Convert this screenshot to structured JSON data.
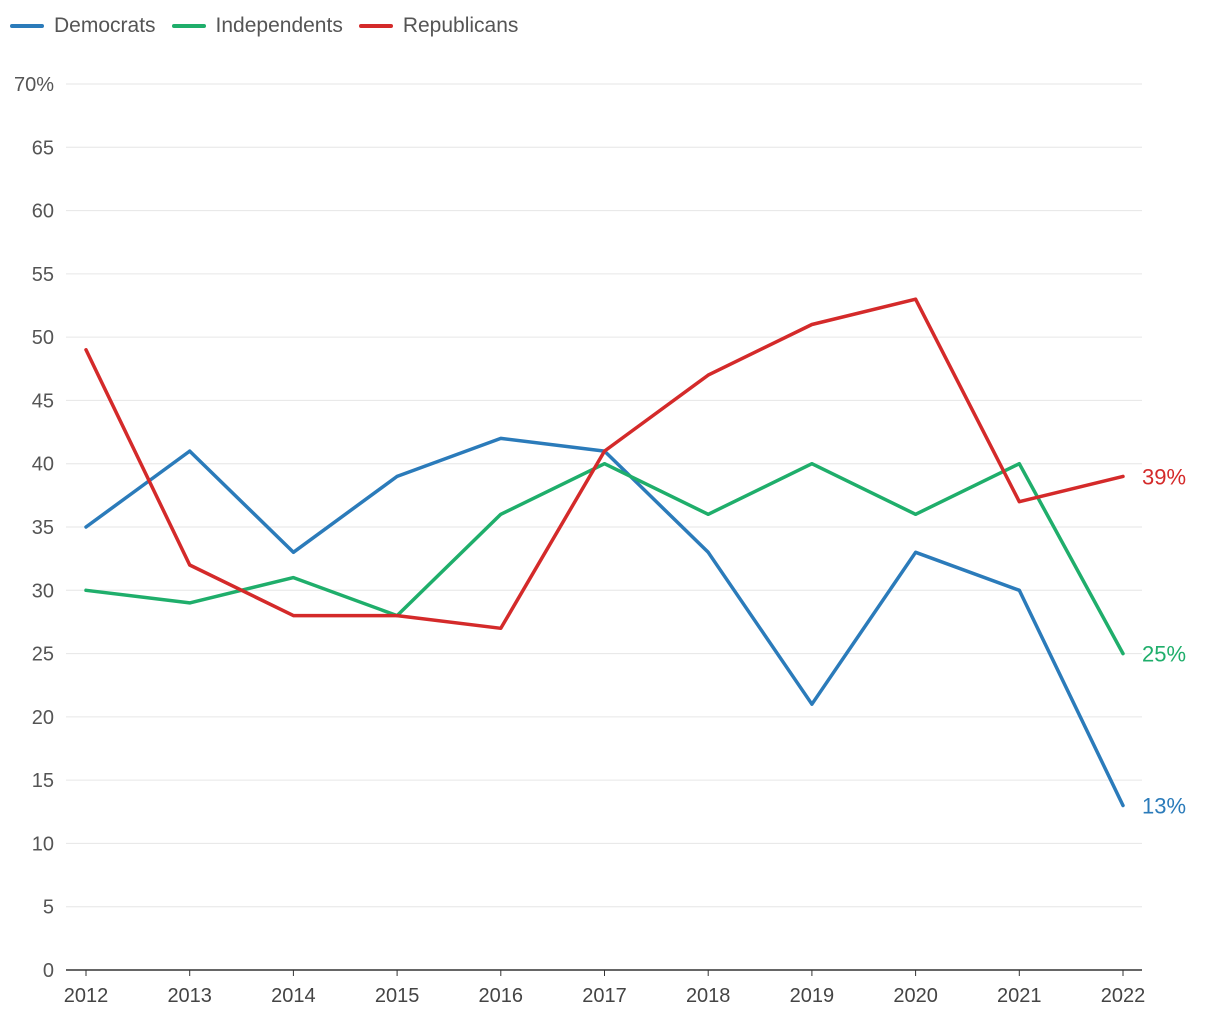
{
  "chart_data": {
    "type": "line",
    "title": "",
    "xlabel": "",
    "ylabel": "",
    "y_unit_suffix": "%",
    "ylim": [
      0,
      70
    ],
    "y_ticks": [
      "0",
      "5",
      "10",
      "15",
      "20",
      "25",
      "30",
      "35",
      "40",
      "45",
      "50",
      "55",
      "60",
      "65",
      "70%"
    ],
    "x": [
      "2012",
      "2013",
      "2014",
      "2015",
      "2016",
      "2017",
      "2018",
      "2019",
      "2020",
      "2021",
      "2022"
    ],
    "grid": "horizontal",
    "legend_position": "top-left",
    "series": [
      {
        "name": "Democrats",
        "color": "#2b7bba",
        "values": [
          35,
          41,
          33,
          39,
          42,
          41,
          33,
          21,
          33,
          30,
          13
        ],
        "end_label": "13%"
      },
      {
        "name": "Independents",
        "color": "#1fae6b",
        "values": [
          30,
          29,
          31,
          28,
          36,
          40,
          36,
          40,
          36,
          40,
          25
        ],
        "end_label": "25%"
      },
      {
        "name": "Republicans",
        "color": "#d42a2a",
        "values": [
          49,
          32,
          28,
          28,
          27,
          41,
          47,
          51,
          53,
          37,
          39
        ],
        "end_label": "39%"
      }
    ]
  }
}
